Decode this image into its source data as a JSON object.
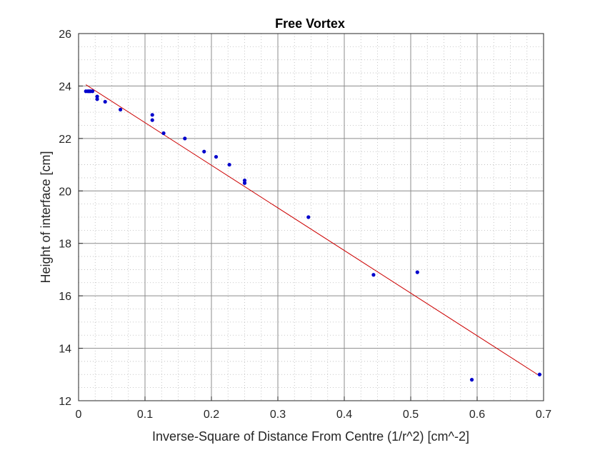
{
  "chart_data": {
    "type": "scatter",
    "title": "Free Vortex",
    "xlabel": "Inverse-Square of Distance From Centre (1/r^2) [cm^-2]",
    "ylabel": "Height of interface [cm]",
    "xlim": [
      0,
      0.7
    ],
    "ylim": [
      12,
      26
    ],
    "xticks": [
      "0",
      "0.1",
      "0.2",
      "0.3",
      "0.4",
      "0.5",
      "0.6",
      "0.7"
    ],
    "yticks": [
      "12",
      "14",
      "16",
      "18",
      "20",
      "22",
      "24",
      "26"
    ],
    "grid": true,
    "minor_grid": true,
    "series": [
      {
        "type": "scatter",
        "color": "#0000cc",
        "points": [
          [
            0.011,
            23.8
          ],
          [
            0.014,
            23.8
          ],
          [
            0.016,
            23.8
          ],
          [
            0.018,
            23.8
          ],
          [
            0.021,
            23.8
          ],
          [
            0.028,
            23.6
          ],
          [
            0.028,
            23.5
          ],
          [
            0.04,
            23.4
          ],
          [
            0.063,
            23.1
          ],
          [
            0.111,
            22.9
          ],
          [
            0.111,
            22.7
          ],
          [
            0.128,
            22.2
          ],
          [
            0.16,
            22.0
          ],
          [
            0.189,
            21.5
          ],
          [
            0.207,
            21.3
          ],
          [
            0.227,
            21.0
          ],
          [
            0.25,
            20.4
          ],
          [
            0.25,
            20.3
          ],
          [
            0.346,
            19.0
          ],
          [
            0.444,
            16.8
          ],
          [
            0.51,
            16.9
          ],
          [
            0.592,
            12.8
          ],
          [
            0.694,
            13.0
          ]
        ]
      },
      {
        "type": "line",
        "color": "#cc0000",
        "points": [
          [
            0.011,
            24.05
          ],
          [
            0.694,
            12.95
          ]
        ]
      }
    ]
  }
}
